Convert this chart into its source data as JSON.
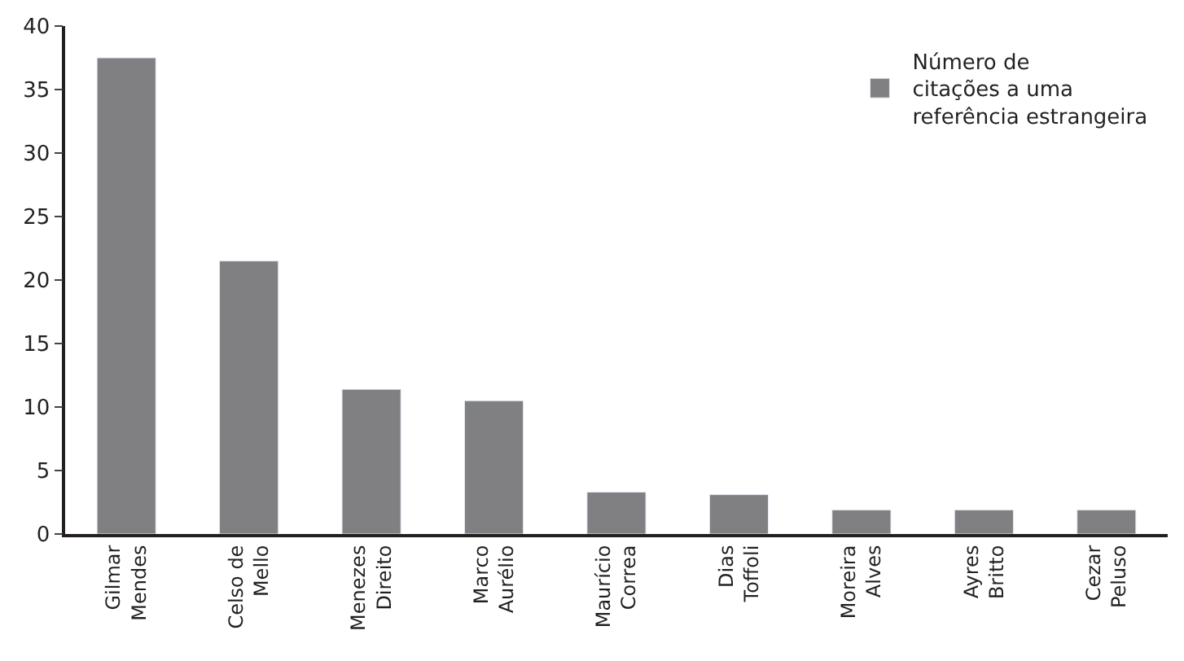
{
  "chart_data": {
    "type": "bar",
    "categories": [
      "Gilmar\nMendes",
      "Celso de\nMello",
      "Menezes\nDireito",
      "Marco\nAurélio",
      "Maurício\nCorrea",
      "Dias\nToffoli",
      "Moreira\nAlves",
      "Ayres\nBritto",
      "Cezar\nPeluso"
    ],
    "series": [
      {
        "name": "Número de\ncitações a uma\nreferência estrangeira",
        "color": "#808083",
        "values": [
          37.5,
          21.5,
          11.4,
          10.5,
          3.3,
          3.1,
          1.9,
          1.9,
          1.9
        ]
      }
    ],
    "ylim": [
      0,
      40
    ],
    "yticks": [
      0,
      5,
      10,
      15,
      20,
      25,
      30,
      35,
      40
    ],
    "legend": "top right"
  }
}
